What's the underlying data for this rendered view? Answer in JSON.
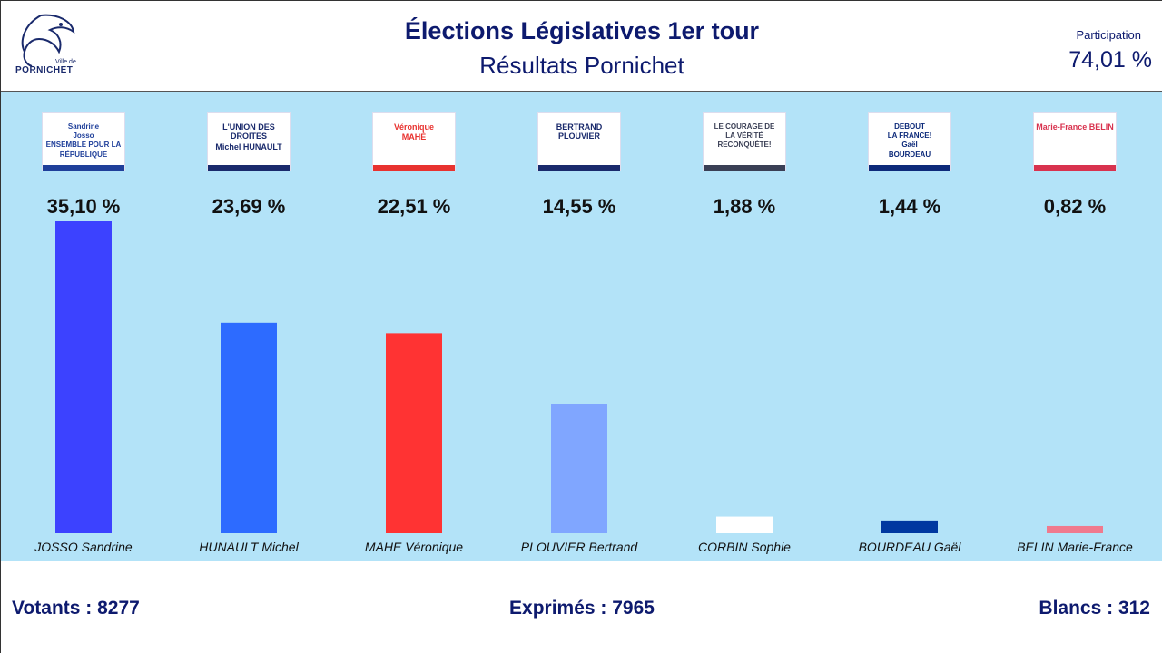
{
  "header": {
    "logo_text": "PORNICHET",
    "logo_ville": "Ville de",
    "title": "Élections Législatives 1er tour",
    "subtitle": "Résultats Pornichet",
    "participation_label": "Participation",
    "participation_value": "74,01 %"
  },
  "footer": {
    "votants": "Votants : 8277",
    "exprimes": "Exprimés : 7965",
    "blancs": "Blancs : 312"
  },
  "chart_data": {
    "type": "bar",
    "categories": [
      "JOSSO Sandrine",
      "HUNAULT Michel",
      "MAHE Véronique",
      "PLOUVIER Bertrand",
      "CORBIN Sophie",
      "BOURDEAU Gaël",
      "BELIN Marie-France"
    ],
    "values": [
      35.1,
      23.69,
      22.51,
      14.55,
      1.88,
      1.44,
      0.82
    ],
    "value_labels": [
      "35,10 %",
      "23,69 %",
      "22,51 %",
      "14,55 %",
      "1,88 %",
      "1,44 %",
      "0,82 %"
    ],
    "colors": [
      "#3c42ff",
      "#2d6bff",
      "#ff3333",
      "#80a6ff",
      "#ffffff",
      "#0038a0",
      "#f07a8e"
    ],
    "ylim": [
      0,
      35.1
    ],
    "grid": false,
    "legend": "none",
    "title": "",
    "xlabel": "",
    "ylabel": ""
  },
  "posters": [
    {
      "lines": [
        "Sandrine",
        "Josso",
        "ENSEMBLE POUR LA",
        "RÉPUBLIQUE"
      ],
      "accent": "#1f3f9a"
    },
    {
      "lines": [
        "L'UNION DES DROITES",
        "Michel HUNAULT"
      ],
      "accent": "#1a2a6c"
    },
    {
      "lines": [
        "Véronique",
        "MAHÉ"
      ],
      "accent": "#e8322f"
    },
    {
      "lines": [
        "BERTRAND PLOUVIER"
      ],
      "accent": "#1a2a6c"
    },
    {
      "lines": [
        "LE COURAGE DE",
        "LA VÉRITÉ",
        "RECONQUÊTE!"
      ],
      "accent": "#3a3f55"
    },
    {
      "lines": [
        "DEBOUT",
        "LA FRANCE!",
        "Gaël",
        "BOURDEAU"
      ],
      "accent": "#0d2a7a"
    },
    {
      "lines": [
        "Marie-France BELIN"
      ],
      "accent": "#d8324e"
    }
  ]
}
